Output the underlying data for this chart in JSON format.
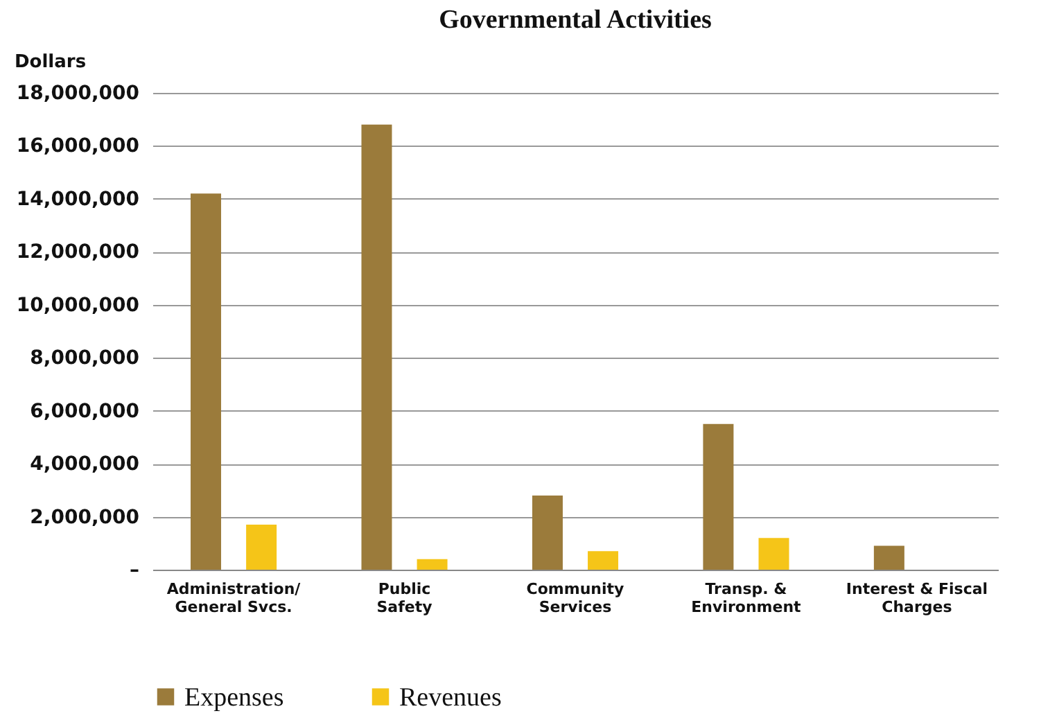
{
  "chart_data": {
    "type": "bar",
    "title": "Governmental Activities",
    "ylabel": "Dollars",
    "categories": [
      "Administration/\nGeneral Svcs.",
      "Public\nSafety",
      "Community\nServices",
      "Transp. &\nEnvironment",
      "Interest & Fiscal\nCharges"
    ],
    "series": [
      {
        "name": "Expenses",
        "color": "#9b7b3b",
        "values": [
          14200000,
          16800000,
          2800000,
          5500000,
          900000
        ]
      },
      {
        "name": "Revenues",
        "color": "#f5c518",
        "values": [
          1700000,
          400000,
          700000,
          1200000,
          null
        ]
      }
    ],
    "ylim": [
      0,
      18000000
    ],
    "yticks": [
      {
        "value": 0,
        "label": "–"
      },
      {
        "value": 2000000,
        "label": "2,000,000"
      },
      {
        "value": 4000000,
        "label": "4,000,000"
      },
      {
        "value": 6000000,
        "label": "6,000,000"
      },
      {
        "value": 8000000,
        "label": "8,000,000"
      },
      {
        "value": 10000000,
        "label": "10,000,000"
      },
      {
        "value": 12000000,
        "label": "12,000,000"
      },
      {
        "value": 14000000,
        "label": "14,000,000"
      },
      {
        "value": 16000000,
        "label": "16,000,000"
      },
      {
        "value": 18000000,
        "label": "18,000,000"
      }
    ],
    "grid": "y",
    "legend": "bottom"
  }
}
